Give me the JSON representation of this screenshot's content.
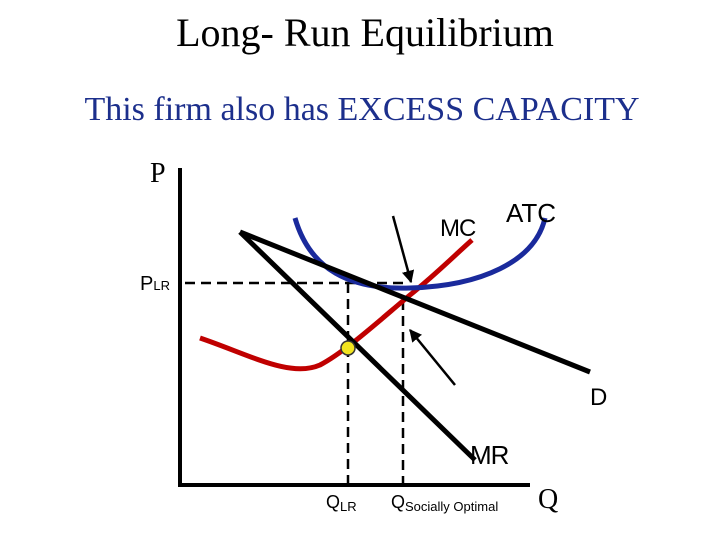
{
  "header": {
    "title": "Long- Run Equilibrium",
    "subtitle": "This firm also has EXCESS CAPACITY"
  },
  "labels": {
    "price_axis": "P",
    "price_lr": {
      "main": "P",
      "sub": "LR"
    },
    "mc": "MC",
    "atc": "ATC",
    "demand": "D",
    "mr": "MR",
    "q_lr": {
      "main": "Q",
      "sub": "LR"
    },
    "q_social": {
      "main": "Q",
      "sub": "Socially Optimal"
    },
    "quantity_axis": "Q"
  }
}
